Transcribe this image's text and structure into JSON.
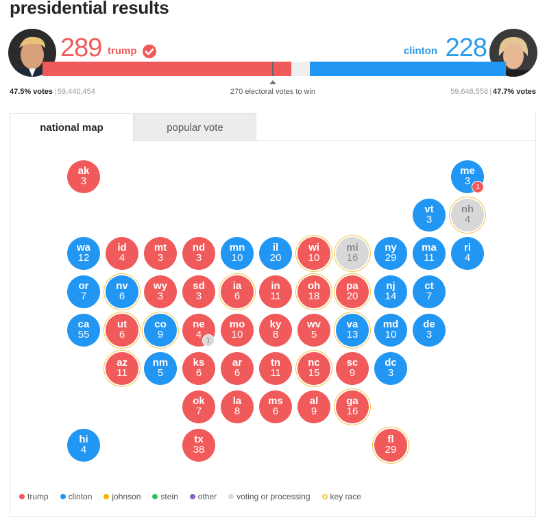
{
  "title": "presidential results",
  "trump": {
    "ev": "289",
    "name": "trump",
    "pct": "47.5% votes",
    "votes": "59,440,454",
    "color": "#f05a5a",
    "ev_fraction": 0.5372
  },
  "clinton": {
    "ev": "228",
    "name": "clinton",
    "pct": "47.7% votes",
    "votes": "59,648,558",
    "color": "#2196f3",
    "ev_fraction": 0.4238
  },
  "to_win": "270 electoral votes to win",
  "tabs": [
    {
      "label": "national map",
      "active": true
    },
    {
      "label": "popular vote",
      "active": false
    }
  ],
  "states": [
    {
      "ab": "ak",
      "ev": "3",
      "winner": "r",
      "key": false,
      "row": 0,
      "col": 0
    },
    {
      "ab": "me",
      "ev": "3",
      "winner": "d",
      "key": false,
      "row": 0,
      "col": 10,
      "extra": "1",
      "extra_winner": "r"
    },
    {
      "ab": "vt",
      "ev": "3",
      "winner": "d",
      "key": false,
      "row": 1,
      "col": 9
    },
    {
      "ab": "nh",
      "ev": "4",
      "winner": "p",
      "key": true,
      "row": 1,
      "col": 10
    },
    {
      "ab": "wa",
      "ev": "12",
      "winner": "d",
      "key": false,
      "row": 2,
      "col": 0
    },
    {
      "ab": "id",
      "ev": "4",
      "winner": "r",
      "key": false,
      "row": 2,
      "col": 1
    },
    {
      "ab": "mt",
      "ev": "3",
      "winner": "r",
      "key": false,
      "row": 2,
      "col": 2
    },
    {
      "ab": "nd",
      "ev": "3",
      "winner": "r",
      "key": false,
      "row": 2,
      "col": 3
    },
    {
      "ab": "mn",
      "ev": "10",
      "winner": "d",
      "key": false,
      "row": 2,
      "col": 4
    },
    {
      "ab": "il",
      "ev": "20",
      "winner": "d",
      "key": false,
      "row": 2,
      "col": 5
    },
    {
      "ab": "wi",
      "ev": "10",
      "winner": "r",
      "key": true,
      "row": 2,
      "col": 6
    },
    {
      "ab": "mi",
      "ev": "16",
      "winner": "p",
      "key": true,
      "row": 2,
      "col": 7
    },
    {
      "ab": "ny",
      "ev": "29",
      "winner": "d",
      "key": false,
      "row": 2,
      "col": 8
    },
    {
      "ab": "ma",
      "ev": "11",
      "winner": "d",
      "key": false,
      "row": 2,
      "col": 9
    },
    {
      "ab": "ri",
      "ev": "4",
      "winner": "d",
      "key": false,
      "row": 2,
      "col": 10
    },
    {
      "ab": "or",
      "ev": "7",
      "winner": "d",
      "key": false,
      "row": 3,
      "col": 0
    },
    {
      "ab": "nv",
      "ev": "6",
      "winner": "d",
      "key": true,
      "row": 3,
      "col": 1
    },
    {
      "ab": "wy",
      "ev": "3",
      "winner": "r",
      "key": false,
      "row": 3,
      "col": 2
    },
    {
      "ab": "sd",
      "ev": "3",
      "winner": "r",
      "key": false,
      "row": 3,
      "col": 3
    },
    {
      "ab": "ia",
      "ev": "6",
      "winner": "r",
      "key": true,
      "row": 3,
      "col": 4
    },
    {
      "ab": "in",
      "ev": "11",
      "winner": "r",
      "key": false,
      "row": 3,
      "col": 5
    },
    {
      "ab": "oh",
      "ev": "18",
      "winner": "r",
      "key": true,
      "row": 3,
      "col": 6
    },
    {
      "ab": "pa",
      "ev": "20",
      "winner": "r",
      "key": true,
      "row": 3,
      "col": 7
    },
    {
      "ab": "nj",
      "ev": "14",
      "winner": "d",
      "key": false,
      "row": 3,
      "col": 8
    },
    {
      "ab": "ct",
      "ev": "7",
      "winner": "d",
      "key": false,
      "row": 3,
      "col": 9
    },
    {
      "ab": "ca",
      "ev": "55",
      "winner": "d",
      "key": false,
      "row": 4,
      "col": 0
    },
    {
      "ab": "ut",
      "ev": "6",
      "winner": "r",
      "key": true,
      "row": 4,
      "col": 1
    },
    {
      "ab": "co",
      "ev": "9",
      "winner": "d",
      "key": true,
      "row": 4,
      "col": 2
    },
    {
      "ab": "ne",
      "ev": "4",
      "winner": "r",
      "key": false,
      "row": 4,
      "col": 3,
      "extra": "1",
      "extra_winner": "p"
    },
    {
      "ab": "mo",
      "ev": "10",
      "winner": "r",
      "key": false,
      "row": 4,
      "col": 4
    },
    {
      "ab": "ky",
      "ev": "8",
      "winner": "r",
      "key": false,
      "row": 4,
      "col": 5
    },
    {
      "ab": "wv",
      "ev": "5",
      "winner": "r",
      "key": false,
      "row": 4,
      "col": 6
    },
    {
      "ab": "va",
      "ev": "13",
      "winner": "d",
      "key": true,
      "row": 4,
      "col": 7
    },
    {
      "ab": "md",
      "ev": "10",
      "winner": "d",
      "key": false,
      "row": 4,
      "col": 8
    },
    {
      "ab": "de",
      "ev": "3",
      "winner": "d",
      "key": false,
      "row": 4,
      "col": 9
    },
    {
      "ab": "az",
      "ev": "11",
      "winner": "r",
      "key": true,
      "row": 5,
      "col": 1
    },
    {
      "ab": "nm",
      "ev": "5",
      "winner": "d",
      "key": false,
      "row": 5,
      "col": 2
    },
    {
      "ab": "ks",
      "ev": "6",
      "winner": "r",
      "key": false,
      "row": 5,
      "col": 3
    },
    {
      "ab": "ar",
      "ev": "6",
      "winner": "r",
      "key": false,
      "row": 5,
      "col": 4
    },
    {
      "ab": "tn",
      "ev": "11",
      "winner": "r",
      "key": false,
      "row": 5,
      "col": 5
    },
    {
      "ab": "nc",
      "ev": "15",
      "winner": "r",
      "key": true,
      "row": 5,
      "col": 6
    },
    {
      "ab": "sc",
      "ev": "9",
      "winner": "r",
      "key": false,
      "row": 5,
      "col": 7
    },
    {
      "ab": "dc",
      "ev": "3",
      "winner": "d",
      "key": false,
      "row": 5,
      "col": 8
    },
    {
      "ab": "ok",
      "ev": "7",
      "winner": "r",
      "key": false,
      "row": 6,
      "col": 3
    },
    {
      "ab": "la",
      "ev": "8",
      "winner": "r",
      "key": false,
      "row": 6,
      "col": 4
    },
    {
      "ab": "ms",
      "ev": "6",
      "winner": "r",
      "key": false,
      "row": 6,
      "col": 5
    },
    {
      "ab": "al",
      "ev": "9",
      "winner": "r",
      "key": false,
      "row": 6,
      "col": 6
    },
    {
      "ab": "ga",
      "ev": "16",
      "winner": "r",
      "key": true,
      "row": 6,
      "col": 7
    },
    {
      "ab": "hi",
      "ev": "4",
      "winner": "d",
      "key": false,
      "row": 7,
      "col": 0
    },
    {
      "ab": "tx",
      "ev": "38",
      "winner": "r",
      "key": false,
      "row": 7,
      "col": 3
    },
    {
      "ab": "fl",
      "ev": "29",
      "winner": "r",
      "key": true,
      "row": 7,
      "col": 8
    }
  ],
  "legend": [
    {
      "label": "trump",
      "color": "#f05a5a"
    },
    {
      "label": "clinton",
      "color": "#2196f3"
    },
    {
      "label": "johnson",
      "color": "#f5b800"
    },
    {
      "label": "stein",
      "color": "#2ec05a"
    },
    {
      "label": "other",
      "color": "#8a63c9"
    },
    {
      "label": "voting or processing",
      "color": "#d8d8d8"
    },
    {
      "label": "key race",
      "color": "#f4c542",
      "ring": true
    }
  ]
}
